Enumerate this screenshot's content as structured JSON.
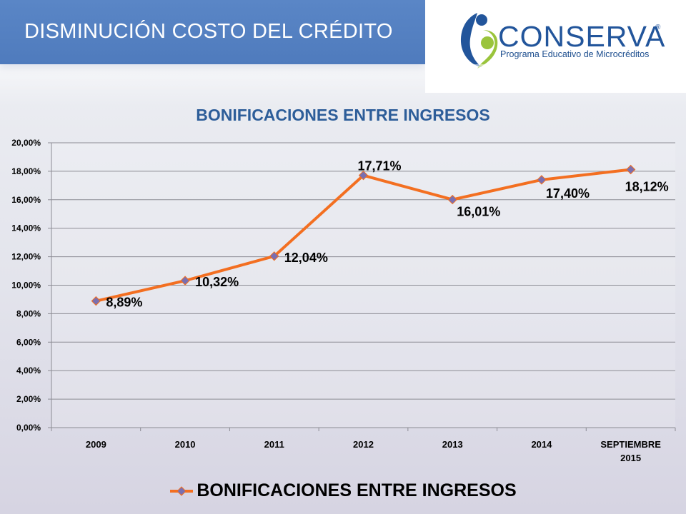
{
  "slide": {
    "title": "DISMINUCIÓN COSTO DEL CRÉDITO"
  },
  "logo": {
    "name": "CONSERVA",
    "registered": "®",
    "tagline": "Programa Educativo de Microcréditos"
  },
  "colors": {
    "title_band": "#4f7bbd",
    "chart_title": "#2d5d99",
    "series_line": "#f36f21",
    "marker": "#7a6fb0"
  },
  "chart_data": {
    "type": "line",
    "title": "BONIFICACIONES ENTRE INGRESOS",
    "categories": [
      "2009",
      "2010",
      "2011",
      "2012",
      "2013",
      "2014",
      "SEPTIEMBRE 2015"
    ],
    "series": [
      {
        "name": "BONIFICACIONES ENTRE INGRESOS",
        "values": [
          8.89,
          10.32,
          12.04,
          17.71,
          16.01,
          17.4,
          18.12
        ],
        "labels": [
          "8,89%",
          "10,32%",
          "12,04%",
          "17,71%",
          "16,01%",
          "17,40%",
          "18,12%"
        ]
      }
    ],
    "ylim": [
      0,
      20
    ],
    "y_ticks": [
      "0,00%",
      "2,00%",
      "4,00%",
      "6,00%",
      "8,00%",
      "10,00%",
      "12,00%",
      "14,00%",
      "16,00%",
      "18,00%",
      "20,00%"
    ],
    "grid": true,
    "legend": "bottom"
  }
}
